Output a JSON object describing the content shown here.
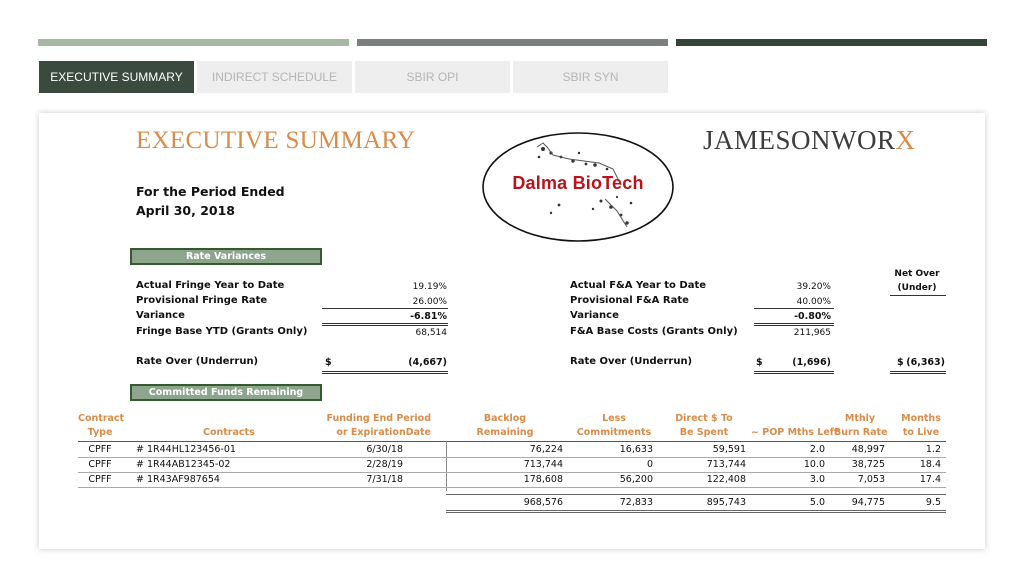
{
  "colors": {
    "topbar_1": "#a9b7a6",
    "topbar_2": "#7c807d",
    "topbar_3": "#36453a",
    "accent": "#d98c4a",
    "active_tab": "#3a4a3f"
  },
  "tabs": [
    {
      "label": "EXECUTIVE SUMMARY",
      "active": true
    },
    {
      "label": "INDIRECT SCHEDULE",
      "active": false
    },
    {
      "label": "SBIR OPI",
      "active": false
    },
    {
      "label": "SBIR SYN",
      "active": false
    }
  ],
  "header": {
    "title": "EXECUTIVE SUMMARY",
    "period_line1": "For the Period Ended",
    "period_line2": "April 30, 2018",
    "logo_text": "Dalma BioTech",
    "brand_main": "JAMESONWOR",
    "brand_x": "X"
  },
  "rate_variances": {
    "section_label": "Rate Variances",
    "fringe": {
      "actual_label": "Actual Fringe Year to Date",
      "actual": "19.19%",
      "provisional_label": "Provisional Fringe Rate",
      "provisional": "26.00%",
      "variance_label": "Variance",
      "variance": "-6.81%",
      "base_label": "Fringe Base YTD (Grants Only)",
      "base": "68,514",
      "over_label": "Rate Over (Underrun)",
      "over_currency": "$",
      "over": "(4,667)"
    },
    "fa": {
      "actual_label": "Actual F&A Year to Date",
      "actual": "39.20%",
      "provisional_label": "Provisional F&A Rate",
      "provisional": "40.00%",
      "variance_label": "Variance",
      "variance": "-0.80%",
      "base_label": "F&A Base Costs (Grants Only)",
      "base": "211,965",
      "over_label": "Rate Over (Underrun)",
      "over_currency": "$",
      "over": "(1,696)"
    },
    "net": {
      "header_1": "Net Over",
      "header_2": "(Under)",
      "currency": "$",
      "value": "(6,363)"
    }
  },
  "committed": {
    "section_label": "Committed Funds Remaining",
    "headers": {
      "type_1": "Contract",
      "type_2": "Type",
      "contracts": "Contracts",
      "end_1": "Funding End Period",
      "end_2": "or ExpirationDate",
      "backlog_1": "Backlog",
      "backlog_2": "Remaining",
      "less_1": "Less",
      "less_2": "Commitments",
      "direct_1": "Direct $ To",
      "direct_2": "Be Spent",
      "pop": "~ POP Mths Left",
      "burn_1": "Mthly",
      "burn_2": "Burn Rate",
      "months_1": "Months",
      "months_2": "to Live"
    },
    "rows": [
      {
        "type": "CPFF",
        "contract": "# 1R44HL123456-01",
        "end": "6/30/18",
        "backlog": "76,224",
        "less": "16,633",
        "direct": "59,591",
        "pop": "2.0",
        "burn": "48,997",
        "months": "1.2"
      },
      {
        "type": "CPFF",
        "contract": "# 1R44AB12345-02",
        "end": "2/28/19",
        "backlog": "713,744",
        "less": "0",
        "direct": "713,744",
        "pop": "10.0",
        "burn": "38,725",
        "months": "18.4"
      },
      {
        "type": "CPFF",
        "contract": "# 1R43AF987654",
        "end": "7/31/18",
        "backlog": "178,608",
        "less": "56,200",
        "direct": "122,408",
        "pop": "3.0",
        "burn": "7,053",
        "months": "17.4"
      }
    ],
    "totals": {
      "backlog": "968,576",
      "less": "72,833",
      "direct": "895,743",
      "pop": "5.0",
      "burn": "94,775",
      "months": "9.5"
    }
  }
}
